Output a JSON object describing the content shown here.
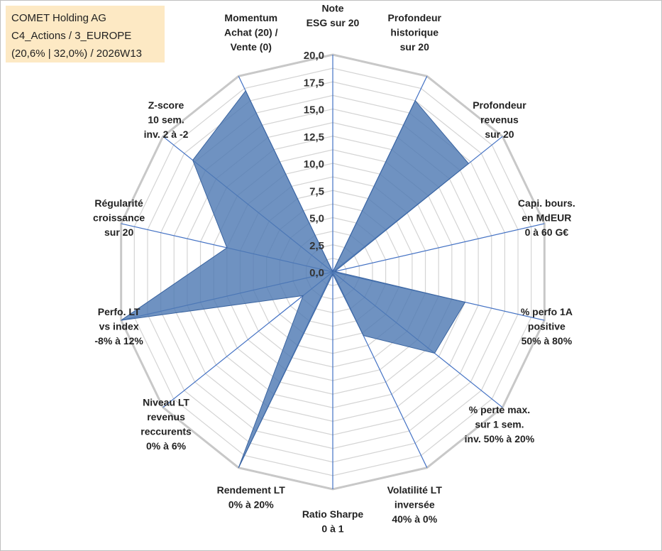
{
  "info": {
    "line1": "COMET Holding AG",
    "line2": "C4_Actions / 3_EUROPE",
    "line3": "(20,6% | 32,0%) / 2026W13"
  },
  "chart_data": {
    "type": "radar",
    "title": "",
    "rmin": 0,
    "rmax": 20,
    "ticks": [
      "0,0",
      "2,5",
      "5,0",
      "7,5",
      "10,0",
      "12,5",
      "15,0",
      "17,5",
      "20,0"
    ],
    "tick_values": [
      0,
      2.5,
      5,
      7.5,
      10,
      12.5,
      15,
      17.5,
      20
    ],
    "categories": [
      [
        "Note",
        "ESG sur 20"
      ],
      [
        "Profondeur",
        "historique",
        "sur 20"
      ],
      [
        "Profondeur",
        "revenus",
        "sur 20"
      ],
      [
        "Capi. bours.",
        "en MdEUR",
        "0 à 60 G€"
      ],
      [
        "% perfo 1A",
        "positive",
        "50% à 80%"
      ],
      [
        "% perte max.",
        "sur 1 sem.",
        "inv. 50% à 20%"
      ],
      [
        "Volatilité LT",
        "inversée",
        "40% à 0%"
      ],
      [
        "Ratio Sharpe",
        "0 à 1"
      ],
      [
        "Rendement LT",
        "0% à 20%"
      ],
      [
        "Niveau LT",
        "revenus",
        "reccurents",
        "0% à 6%"
      ],
      [
        "Perfo. LT",
        "vs index",
        "-8% à 12%"
      ],
      [
        "Régularité",
        "croissance",
        "sur 20"
      ],
      [
        "Z-score",
        "10 sem.",
        "inv. 2 à -2"
      ],
      [
        "Momentum",
        "Achat (20) /",
        "Vente (0)"
      ]
    ],
    "series": [
      {
        "name": "COMET Holding AG",
        "color": "#4f7ab3",
        "values": [
          0,
          17.5,
          16,
          0.2,
          12.5,
          12,
          6.5,
          0.2,
          20,
          3.5,
          20,
          10,
          16.5,
          18.5
        ]
      }
    ]
  }
}
